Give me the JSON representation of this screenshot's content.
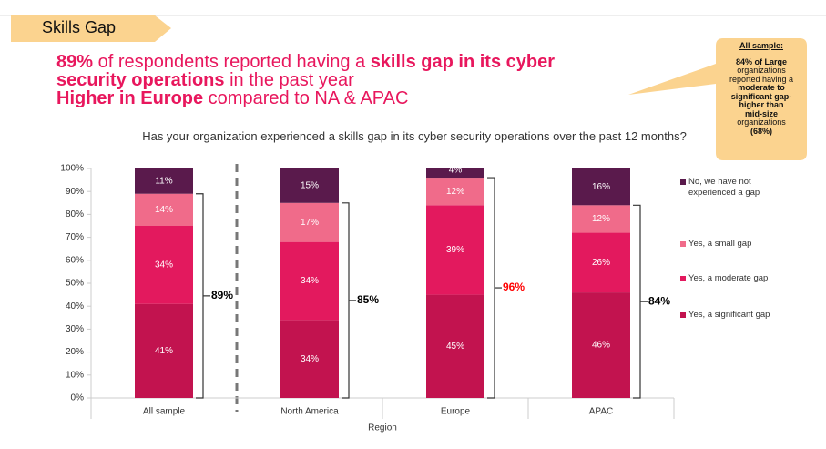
{
  "header": {
    "title": "Skills Gap"
  },
  "headline": {
    "lines": [
      [
        {
          "text": "89%",
          "bold": true
        },
        {
          "text": " of respondents reported having a ",
          "bold": false
        },
        {
          "text": "skills gap in its cyber",
          "bold": true
        }
      ],
      [
        {
          "text": "security operations",
          "bold": true
        },
        {
          "text": " in the past year",
          "bold": false
        }
      ],
      [
        {
          "text": "Higher in Europe",
          "bold": true
        },
        {
          "text": " compared to NA & APAC",
          "bold": false
        }
      ]
    ]
  },
  "callout": {
    "heading": "All sample:",
    "lines": [
      {
        "text": "84% of Large",
        "bold": true
      },
      {
        "text": "organizations",
        "bold": false
      },
      {
        "text": "reported having a",
        "bold": false
      },
      {
        "text": "moderate to",
        "bold": true
      },
      {
        "text": "significant gap-",
        "bold": true
      },
      {
        "text": "higher than",
        "bold": true
      },
      {
        "text": "mid-size",
        "bold": true
      },
      {
        "text": "organizations",
        "bold": false
      },
      {
        "text": "(68%)",
        "bold": true
      }
    ]
  },
  "chart_data": {
    "type": "stacked_bar",
    "title": "Has your organization experienced a skills gap in its cyber security operations over the past 12 months?",
    "x_label": "Region",
    "categories": [
      "All sample",
      "North America",
      "Europe",
      "APAC"
    ],
    "series": [
      {
        "name": "Yes, a significant gap",
        "color": "#c2134f",
        "values": [
          41,
          34,
          45,
          46
        ],
        "value_labels": [
          "41%",
          "34%",
          "45%",
          "46%"
        ]
      },
      {
        "name": "Yes, a moderate gap",
        "color": "#e3195e",
        "values": [
          34,
          34,
          39,
          26
        ],
        "value_labels": [
          "34%",
          "34%",
          "39%",
          "26%"
        ]
      },
      {
        "name": "Yes, a small gap",
        "color": "#f06b8a",
        "values": [
          14,
          17,
          12,
          12
        ],
        "value_labels": [
          "14%",
          "17%",
          "12%",
          "12%"
        ]
      },
      {
        "name": "No, we have not experienced a gap",
        "color": "#5a1a4c",
        "values": [
          11,
          15,
          4,
          16
        ],
        "value_labels": [
          "11%",
          "15%",
          "4%",
          "16%"
        ]
      }
    ],
    "annotations": [
      "89%",
      "85%",
      "96%",
      "84%"
    ],
    "annotation_colors": [
      "#000000",
      "#000000",
      "#ff0000",
      "#000000"
    ],
    "ylim": [
      0,
      100
    ],
    "yticks": [
      {
        "value": 0,
        "label": "0%"
      },
      {
        "value": 10,
        "label": "10%"
      },
      {
        "value": 20,
        "label": "20%"
      },
      {
        "value": 30,
        "label": "30%"
      },
      {
        "value": 40,
        "label": "40%"
      },
      {
        "value": 50,
        "label": "50%"
      },
      {
        "value": 60,
        "label": "60%"
      },
      {
        "value": 70,
        "label": "70%"
      },
      {
        "value": 80,
        "label": "80%"
      },
      {
        "value": 90,
        "label": "90%"
      },
      {
        "value": 100,
        "label": "100%"
      }
    ]
  }
}
